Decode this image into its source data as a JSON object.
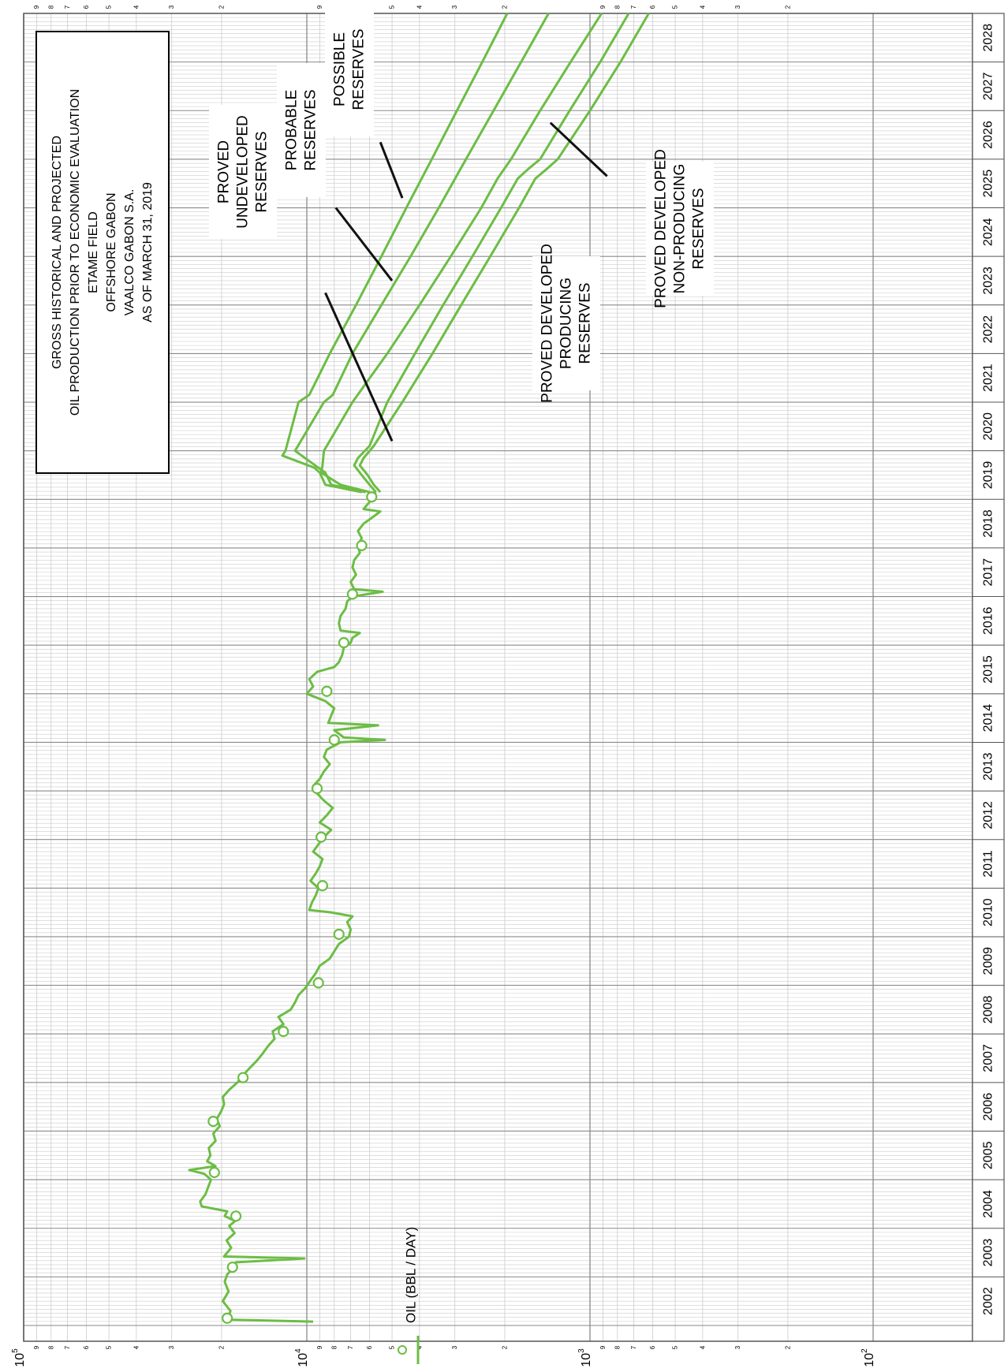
{
  "chart_data": {
    "type": "line",
    "orientation": "rotated-90-ccw",
    "y_scale": "log",
    "ylim": [
      100,
      100000
    ],
    "xlim": [
      2002,
      2029
    ],
    "x_tick_labels": [
      "2002",
      "2003",
      "2004",
      "2005",
      "2006",
      "2007",
      "2008",
      "2009",
      "2010",
      "2011",
      "2012",
      "2013",
      "2014",
      "2015",
      "2016",
      "2017",
      "2018",
      "2019",
      "2020",
      "2021",
      "2022",
      "2023",
      "2024",
      "2025",
      "2026",
      "2027",
      "2028"
    ],
    "y_decades": [
      {
        "mantissa": "10",
        "exponent": "2",
        "value": 100
      },
      {
        "mantissa": "10",
        "exponent": "3",
        "value": 1000
      },
      {
        "mantissa": "10",
        "exponent": "4",
        "value": 10000
      },
      {
        "mantissa": "10",
        "exponent": "5",
        "value": 100000
      }
    ],
    "y_minor_labels": [
      "2",
      "3",
      "4",
      "5",
      "6",
      "7",
      "8",
      "9"
    ],
    "grid": true,
    "legend": {
      "label": "OIL (BBL / DAY)",
      "placement": "bottom-left"
    },
    "colors": {
      "series": "#6cbd45",
      "grid_major": "#8a8a8a",
      "grid_minor": "#cccccc",
      "frame": "#555555",
      "annotation_line": "#111111"
    },
    "title_lines": [
      "GROSS HISTORICAL AND PROJECTED",
      "OIL PRODUCTION PRIOR TO ECONOMIC EVALUATION",
      "ETAME FIELD",
      "OFFSHORE GABON",
      "VAALCO GABON S.A.",
      "AS OF MARCH 31, 2019"
    ],
    "historical": [
      [
        2002.08,
        9500
      ],
      [
        2002.12,
        19000
      ],
      [
        2002.3,
        18600
      ],
      [
        2002.5,
        19800
      ],
      [
        2002.7,
        18900
      ],
      [
        2002.9,
        19500
      ],
      [
        2003.05,
        19100
      ],
      [
        2003.15,
        18400
      ],
      [
        2003.3,
        17800
      ],
      [
        2003.38,
        10200
      ],
      [
        2003.42,
        19600
      ],
      [
        2003.6,
        18500
      ],
      [
        2003.75,
        19200
      ],
      [
        2003.9,
        18000
      ],
      [
        2004.05,
        18800
      ],
      [
        2004.15,
        17900
      ],
      [
        2004.25,
        19500
      ],
      [
        2004.35,
        19100
      ],
      [
        2004.45,
        23500
      ],
      [
        2004.55,
        23800
      ],
      [
        2004.7,
        22800
      ],
      [
        2004.85,
        22300
      ],
      [
        2005.0,
        21800
      ],
      [
        2005.12,
        23000
      ],
      [
        2005.2,
        26000
      ],
      [
        2005.28,
        21000
      ],
      [
        2005.38,
        22500
      ],
      [
        2005.5,
        21900
      ],
      [
        2005.65,
        22200
      ],
      [
        2005.8,
        21000
      ],
      [
        2005.95,
        21400
      ],
      [
        2006.1,
        20300
      ],
      [
        2006.25,
        20800
      ],
      [
        2006.4,
        20100
      ],
      [
        2006.55,
        19600
      ],
      [
        2006.7,
        19800
      ],
      [
        2006.85,
        18800
      ],
      [
        2007.0,
        17600
      ],
      [
        2007.15,
        16800
      ],
      [
        2007.3,
        15900
      ],
      [
        2007.45,
        15000
      ],
      [
        2007.6,
        14300
      ],
      [
        2007.75,
        13700
      ],
      [
        2007.9,
        13000
      ],
      [
        2008.05,
        13200
      ],
      [
        2008.2,
        12100
      ],
      [
        2008.35,
        12600
      ],
      [
        2008.5,
        11400
      ],
      [
        2008.65,
        11000
      ],
      [
        2008.8,
        10700
      ],
      [
        2008.95,
        10100
      ],
      [
        2009.1,
        9700
      ],
      [
        2009.25,
        9300
      ],
      [
        2009.4,
        9000
      ],
      [
        2009.55,
        8300
      ],
      [
        2009.7,
        8000
      ],
      [
        2009.85,
        7700
      ],
      [
        2010.0,
        7100
      ],
      [
        2010.15,
        7000
      ],
      [
        2010.3,
        7200
      ],
      [
        2010.42,
        6900
      ],
      [
        2010.5,
        8200
      ],
      [
        2010.55,
        9800
      ],
      [
        2010.7,
        9600
      ],
      [
        2010.85,
        9300
      ],
      [
        2011.0,
        9100
      ],
      [
        2011.15,
        9700
      ],
      [
        2011.3,
        9300
      ],
      [
        2011.45,
        9000
      ],
      [
        2011.6,
        8800
      ],
      [
        2011.75,
        9500
      ],
      [
        2011.9,
        9100
      ],
      [
        2012.05,
        8700
      ],
      [
        2012.2,
        8200
      ],
      [
        2012.35,
        9000
      ],
      [
        2012.5,
        8500
      ],
      [
        2012.65,
        8100
      ],
      [
        2012.8,
        8700
      ],
      [
        2012.95,
        9200
      ],
      [
        2013.1,
        9500
      ],
      [
        2013.25,
        9000
      ],
      [
        2013.4,
        8700
      ],
      [
        2013.55,
        8300
      ],
      [
        2013.7,
        8700
      ],
      [
        2013.85,
        8500
      ],
      [
        2014.0,
        7600
      ],
      [
        2014.05,
        5300
      ],
      [
        2014.1,
        7400
      ],
      [
        2014.25,
        8000
      ],
      [
        2014.35,
        5600
      ],
      [
        2014.4,
        8400
      ],
      [
        2014.55,
        8200
      ],
      [
        2014.7,
        8000
      ],
      [
        2014.85,
        8600
      ],
      [
        2015.0,
        10000
      ],
      [
        2015.15,
        9500
      ],
      [
        2015.3,
        9800
      ],
      [
        2015.45,
        9200
      ],
      [
        2015.55,
        8000
      ],
      [
        2015.65,
        7700
      ],
      [
        2015.8,
        7500
      ],
      [
        2015.95,
        7400
      ],
      [
        2016.05,
        7000
      ],
      [
        2016.15,
        6900
      ],
      [
        2016.25,
        6500
      ],
      [
        2016.3,
        7600
      ],
      [
        2016.45,
        7700
      ],
      [
        2016.6,
        7600
      ],
      [
        2016.75,
        7300
      ],
      [
        2016.9,
        7200
      ],
      [
        2017.0,
        6900
      ],
      [
        2017.1,
        5400
      ],
      [
        2017.15,
        6800
      ],
      [
        2017.3,
        7000
      ],
      [
        2017.45,
        6700
      ],
      [
        2017.6,
        6900
      ],
      [
        2017.75,
        6800
      ],
      [
        2017.9,
        6500
      ],
      [
        2018.05,
        6600
      ],
      [
        2018.2,
        6400
      ],
      [
        2018.35,
        6600
      ],
      [
        2018.5,
        6300
      ],
      [
        2018.65,
        5800
      ],
      [
        2018.75,
        5500
      ],
      [
        2018.8,
        6300
      ],
      [
        2018.95,
        6000
      ],
      [
        2019.05,
        5900
      ],
      [
        2019.15,
        5700
      ]
    ],
    "historical_markers": [
      [
        2002.15,
        19100
      ],
      [
        2003.2,
        18300
      ],
      [
        2004.25,
        17800
      ],
      [
        2005.15,
        21200
      ],
      [
        2006.2,
        21400
      ],
      [
        2007.1,
        16800
      ],
      [
        2008.05,
        12100
      ],
      [
        2009.05,
        9100
      ],
      [
        2010.05,
        7700
      ],
      [
        2011.05,
        8800
      ],
      [
        2012.05,
        8900
      ],
      [
        2013.05,
        9200
      ],
      [
        2014.05,
        8000
      ],
      [
        2015.05,
        8500
      ],
      [
        2016.05,
        7400
      ],
      [
        2017.05,
        6900
      ],
      [
        2018.05,
        6400
      ],
      [
        2019.05,
        5900
      ]
    ],
    "series": [
      {
        "name": "PROVED DEVELOPED PRODUCING",
        "values": [
          [
            2019.15,
            5500
          ],
          [
            2019.3,
            5800
          ],
          [
            2019.5,
            6100
          ],
          [
            2019.7,
            6500
          ],
          [
            2019.85,
            6300
          ],
          [
            2020.1,
            5800
          ],
          [
            2021,
            4600
          ],
          [
            2022,
            3600
          ],
          [
            2023,
            2850
          ],
          [
            2024,
            2250
          ],
          [
            2025,
            1780
          ],
          [
            2025.6,
            1560
          ],
          [
            2025.8,
            1420
          ],
          [
            2026,
            1300
          ],
          [
            2027,
            1000
          ],
          [
            2028,
            780
          ],
          [
            2029,
            620
          ]
        ]
      },
      {
        "name": "PROVED DEVELOPED NON-PRODUCING",
        "values": [
          [
            2019.15,
            5700
          ],
          [
            2019.3,
            6000
          ],
          [
            2019.5,
            6400
          ],
          [
            2019.7,
            6800
          ],
          [
            2019.85,
            6600
          ],
          [
            2020.1,
            6000
          ],
          [
            2021,
            5200
          ],
          [
            2022,
            4150
          ],
          [
            2023,
            3300
          ],
          [
            2024,
            2600
          ],
          [
            2025,
            2060
          ],
          [
            2025.6,
            1800
          ],
          [
            2025.8,
            1650
          ],
          [
            2026,
            1500
          ],
          [
            2027,
            1180
          ],
          [
            2028,
            920
          ],
          [
            2029,
            730
          ]
        ]
      },
      {
        "name": "PROVED UNDEVELOPED",
        "values": [
          [
            2019.15,
            6000
          ],
          [
            2019.3,
            7600
          ],
          [
            2019.55,
            8900
          ],
          [
            2019.7,
            8800
          ],
          [
            2020.0,
            8700
          ],
          [
            2021,
            6900
          ],
          [
            2022,
            5200
          ],
          [
            2023,
            4000
          ],
          [
            2024,
            3100
          ],
          [
            2025,
            2420
          ],
          [
            2025.6,
            2120
          ],
          [
            2026,
            1900
          ],
          [
            2027,
            1500
          ],
          [
            2028,
            1170
          ],
          [
            2029,
            910
          ]
        ]
      },
      {
        "name": "PROBABLE",
        "values": [
          [
            2019.15,
            6200
          ],
          [
            2019.3,
            8200
          ],
          [
            2019.55,
            8600
          ],
          [
            2019.65,
            9100
          ],
          [
            2020.0,
            11000
          ],
          [
            2021,
            8700
          ],
          [
            2021.15,
            8100
          ],
          [
            2022,
            6900
          ],
          [
            2023,
            5450
          ],
          [
            2024,
            4300
          ],
          [
            2025,
            3420
          ],
          [
            2026,
            2740
          ],
          [
            2027,
            2190
          ],
          [
            2028,
            1750
          ],
          [
            2029,
            1400
          ]
        ]
      },
      {
        "name": "POSSIBLE",
        "values": [
          [
            2019.15,
            6400
          ],
          [
            2019.3,
            8600
          ],
          [
            2019.55,
            9000
          ],
          [
            2019.65,
            9400
          ],
          [
            2019.9,
            12200
          ],
          [
            2020.0,
            11900
          ],
          [
            2021,
            10700
          ],
          [
            2021.15,
            9800
          ],
          [
            2022,
            8300
          ],
          [
            2023,
            6700
          ],
          [
            2024,
            5450
          ],
          [
            2025,
            4450
          ],
          [
            2026,
            3620
          ],
          [
            2027,
            2950
          ],
          [
            2028,
            2400
          ],
          [
            2029,
            1960
          ]
        ]
      }
    ],
    "annotations": [
      {
        "lines": [
          "PROVED",
          "UNDEVELOPED",
          "RESERVES"
        ],
        "leader_from": [
          2023.25,
          8600
        ],
        "leader_to": [
          2020.2,
          5000
        ]
      },
      {
        "lines": [
          "PROBABLE",
          "RESERVES"
        ],
        "leader_from": [
          2025.0,
          7900
        ],
        "leader_to": [
          2023.5,
          5000
        ]
      },
      {
        "lines": [
          "POSSIBLE",
          "RESERVES"
        ],
        "leader_from": [
          2026.35,
          5500
        ],
        "leader_to": [
          2025.2,
          4600
        ]
      },
      {
        "lines": [
          "PROVED DEVELOPED",
          "PRODUCING",
          "RESERVES"
        ],
        "leader_from": null,
        "leader_to": null
      },
      {
        "lines": [
          "PROVED DEVELOPED",
          "NON-PRODUCING",
          "RESERVES"
        ],
        "leader_from": [
          2026.75,
          1380
        ],
        "leader_to": [
          2025.65,
          870
        ]
      }
    ]
  }
}
